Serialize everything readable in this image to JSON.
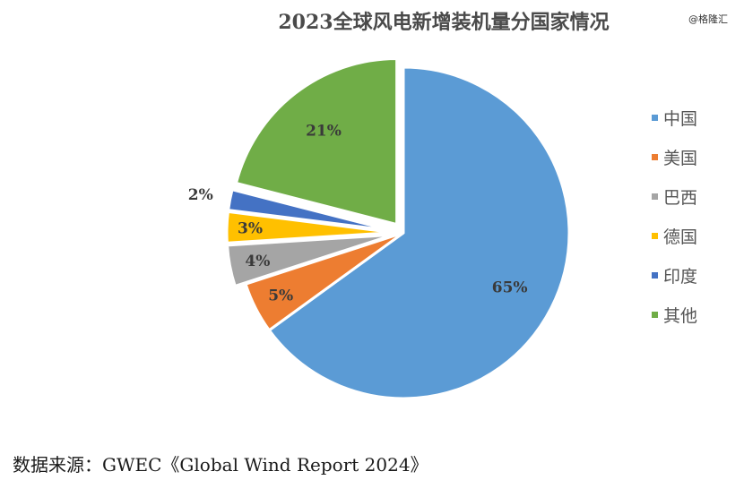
{
  "watermark": "@格隆汇",
  "source": "数据来源：GWEC《Global Wind Report 2024》",
  "chart_data": {
    "type": "pie",
    "title": "2023全球风电新增装机量分国家情况",
    "categories": [
      "中国",
      "美国",
      "巴西",
      "德国",
      "印度",
      "其他"
    ],
    "values": [
      65,
      5,
      4,
      3,
      2,
      21
    ],
    "data_labels": [
      "65%",
      "5%",
      "4%",
      "3%",
      "2%",
      "21%"
    ],
    "unit": "%",
    "colors": [
      "#5b9bd5",
      "#ed7d31",
      "#a5a5a5",
      "#ffc000",
      "#4472c4",
      "#70ad47"
    ],
    "start_angle": "12 o'clock",
    "direction": "clockwise",
    "exploded_categories": [
      "巴西",
      "德国",
      "印度",
      "其他"
    ],
    "legend_position": "right"
  }
}
